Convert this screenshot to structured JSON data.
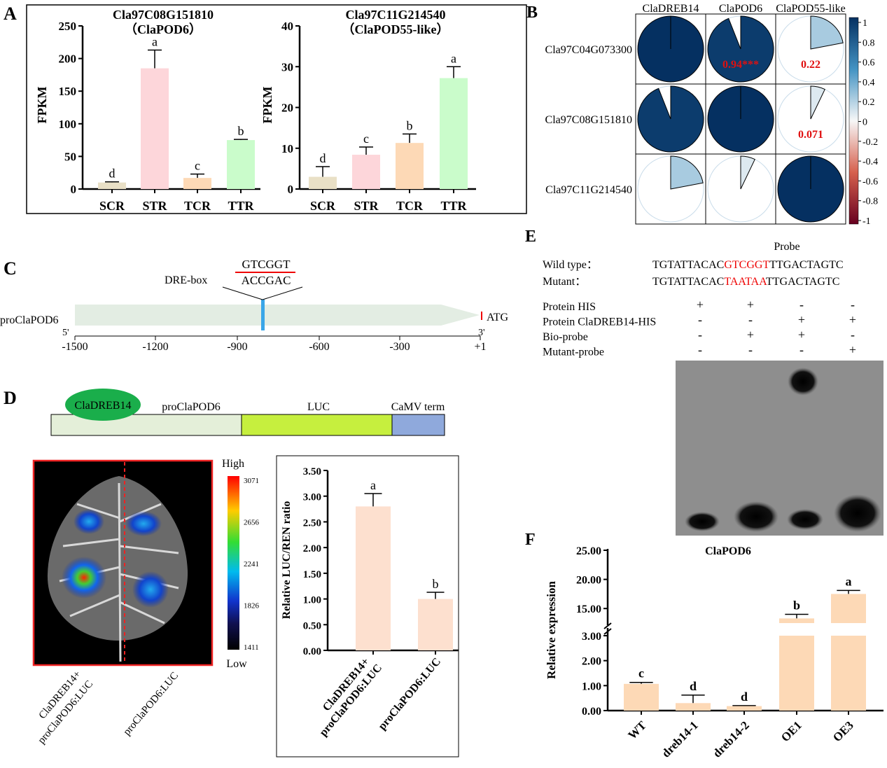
{
  "panels": {
    "A": "A",
    "B": "B",
    "C": "C",
    "D": "D",
    "E": "E",
    "F": "F"
  },
  "chart_data": [
    {
      "id": "A1",
      "type": "bar",
      "title": [
        "Cla97C08G151810",
        "（ClaPOD6）"
      ],
      "ylabel": "FPKM",
      "xlabel": "",
      "categories": [
        "SCR",
        "STR",
        "TCR",
        "TTR"
      ],
      "values": [
        10,
        185,
        17,
        75
      ],
      "error": [
        11,
        213,
        23,
        76
      ],
      "letters": [
        "d",
        "a",
        "c",
        "b"
      ],
      "ylim": [
        0,
        250
      ],
      "yticks": [
        "0",
        "50",
        "100",
        "150",
        "200",
        "250"
      ],
      "colors": [
        "#e9e0c6",
        "#fdd6da",
        "#fdd9b6",
        "#cafccb"
      ]
    },
    {
      "id": "A2",
      "type": "bar",
      "title": [
        "Cla97C11G214540",
        "（ClaPOD55-like）"
      ],
      "ylabel": "FPKM",
      "xlabel": "",
      "categories": [
        "SCR",
        "STR",
        "TCR",
        "TTR"
      ],
      "values": [
        3,
        8.4,
        11.3,
        27.2
      ],
      "error": [
        5.5,
        10.3,
        13.5,
        30
      ],
      "letters": [
        "d",
        "c",
        "b",
        "a"
      ],
      "ylim": [
        0,
        40
      ],
      "yticks": [
        "0",
        "10",
        "20",
        "30",
        "40"
      ],
      "colors": [
        "#e9e0c6",
        "#fdd6da",
        "#fdd9b6",
        "#cafccb"
      ]
    },
    {
      "id": "B",
      "type": "heatmap",
      "columns": [
        "ClaDREB14",
        "ClaPOD6",
        "ClaPOD55-like"
      ],
      "rows": [
        "Cla97C04G073300",
        "Cla97C08G151810",
        "Cla97C11G214540"
      ],
      "values": [
        [
          1,
          0.94,
          0.22
        ],
        [
          0.94,
          1,
          0.071
        ],
        [
          0.22,
          0.071,
          1
        ]
      ],
      "labels": [
        [
          "",
          "0.94***",
          "0.22"
        ],
        [
          "",
          "",
          "0.071"
        ],
        [
          "",
          "",
          ""
        ]
      ],
      "colorbar": {
        "range": [
          -1,
          1
        ],
        "ticks": [
          "1",
          "0.8",
          "0.6",
          "0.4",
          "0.2",
          "0",
          "-0.2",
          "-0.4",
          "-0.6",
          "-0.8",
          "-1"
        ],
        "low_color": "#67001f",
        "mid_color": "#ffffff",
        "high_color": "#053061"
      }
    },
    {
      "id": "D",
      "type": "bar",
      "title": "",
      "ylabel": "Relative LUC/REN ratio",
      "xlabel": "",
      "categories": [
        "ClaDREB14+\nproClaPOD6:LUC",
        "proClaPOD6:LUC"
      ],
      "values": [
        2.8,
        1.0
      ],
      "error": [
        3.05,
        1.13
      ],
      "letters": [
        "a",
        "b"
      ],
      "ylim": [
        0,
        3.5
      ],
      "yticks": [
        "0.00",
        "0.50",
        "1.00",
        "1.50",
        "2.00",
        "2.50",
        "3.00",
        "3.50"
      ],
      "colors": [
        "#fde0cf",
        "#fde0cf"
      ]
    },
    {
      "id": "F",
      "type": "bar",
      "title": "ClaPOD6",
      "ylabel": "Relative expression",
      "xlabel": "",
      "categories": [
        "WT",
        "dreb14-1",
        "dreb14-2",
        "OE1",
        "OE3"
      ],
      "values": [
        1.07,
        0.3,
        0.18,
        13.3,
        17.5
      ],
      "error": [
        1.13,
        0.62,
        0.2,
        14,
        18.1
      ],
      "letters": [
        "c",
        "d",
        "d",
        "b",
        "a"
      ],
      "axis_break": [
        3,
        12.5
      ],
      "ylim": [
        0,
        25
      ],
      "yticks_lower": [
        "0.00",
        "1.00",
        "2.00",
        "3.00"
      ],
      "yticks_upper": [
        "15.00",
        "20.00",
        "25.00"
      ],
      "colors": [
        "#fdd9b6"
      ]
    }
  ],
  "panelC": {
    "motif_top": "GTCGGT",
    "motif_bottom": "ACCGAC",
    "element": "DRE-box",
    "promoter": "proClaPOD6",
    "start": "ATG",
    "five": "5'",
    "three": "3'",
    "ticks": [
      "-1500",
      "-1200",
      "-900",
      "-600",
      "-300",
      "+1"
    ]
  },
  "panelD": {
    "tf": "ClaDREB14",
    "promoter": "proClaPOD6",
    "reporter": "LUC",
    "terminator": "CaMV term",
    "high": "High",
    "low": "Low",
    "scale": [
      "3071",
      "2656",
      "2241",
      "1826",
      "1411"
    ],
    "leaf_labels": [
      "ClaDREB14+\nproClaPOD6:LUC",
      "proClaPOD6:LUC"
    ]
  },
  "panelE": {
    "probe": "Probe",
    "wt_label": "Wild type：",
    "wt_seq": [
      "TGTATTACAC",
      "GTCGGT",
      "TTGACTAGTC"
    ],
    "mut_label": "Mutant：",
    "mut_seq": [
      "TGTATTACAC",
      "TAATAA",
      "TTGACTAGTC"
    ],
    "rows": [
      {
        "label": "Protein HIS",
        "marks": [
          "+",
          "+",
          "-",
          "-"
        ]
      },
      {
        "label": "Protein ClaDREB14-HIS",
        "marks": [
          "-",
          "-",
          "+",
          "+"
        ]
      },
      {
        "label": "Bio-probe",
        "marks": [
          "-",
          "+",
          "+",
          "-"
        ]
      },
      {
        "label": "Mutant-probe",
        "marks": [
          "-",
          "-",
          "-",
          "+"
        ]
      }
    ]
  }
}
